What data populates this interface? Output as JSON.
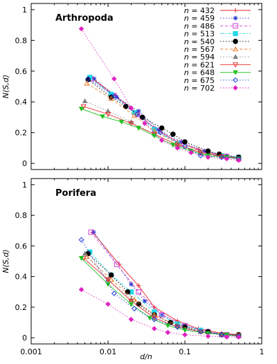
{
  "figure": {
    "xlabel": "d/n",
    "x_ticks": [
      "0.001",
      "0.01",
      "0.1",
      "1"
    ],
    "y_ticks": [
      "0",
      "0.2",
      "0.4",
      "0.6",
      "0.8",
      "1"
    ]
  },
  "chart_data": [
    {
      "type": "line",
      "title": "Arthropoda",
      "xlabel": "",
      "ylabel": "N(S,d)",
      "xscale": "log",
      "xlim": [
        0.001,
        1
      ],
      "ylim": [
        -0.04,
        1.04
      ],
      "grid": false,
      "legend": "top-right",
      "series": [
        {
          "name": "n = 432",
          "color": "#e8202a",
          "marker": "plus",
          "dash": "solid",
          "points": [
            [
              0.0063,
              0.55
            ],
            [
              0.0125,
              0.44
            ],
            [
              0.02,
              0.36
            ],
            [
              0.04,
              0.23
            ],
            [
              0.08,
              0.14
            ],
            [
              0.15,
              0.09
            ],
            [
              0.3,
              0.05
            ],
            [
              0.5,
              0.035
            ]
          ]
        },
        {
          "name": "n = 459",
          "color": "#2030c8",
          "marker": "star",
          "dash": "dot",
          "points": [
            [
              0.0066,
              0.55
            ],
            [
              0.013,
              0.43
            ],
            [
              0.025,
              0.34
            ],
            [
              0.045,
              0.22
            ],
            [
              0.09,
              0.14
            ],
            [
              0.18,
              0.08
            ],
            [
              0.35,
              0.05
            ],
            [
              0.5,
              0.04
            ]
          ]
        },
        {
          "name": "n = 486",
          "color": "#d040d0",
          "marker": "square",
          "dash": "dash",
          "points": [
            [
              0.006,
              0.55
            ],
            [
              0.012,
              0.44
            ],
            [
              0.024,
              0.32
            ],
            [
              0.045,
              0.21
            ],
            [
              0.09,
              0.13
            ],
            [
              0.18,
              0.07
            ],
            [
              0.35,
              0.045
            ],
            [
              0.5,
              0.03
            ]
          ]
        },
        {
          "name": "n = 513",
          "color": "#20d8e8",
          "marker": "filled-square",
          "dash": "dashdot",
          "points": [
            [
              0.0058,
              0.56
            ],
            [
              0.011,
              0.45
            ],
            [
              0.022,
              0.33
            ],
            [
              0.04,
              0.22
            ],
            [
              0.08,
              0.13
            ],
            [
              0.16,
              0.07
            ],
            [
              0.3,
              0.05
            ],
            [
              0.5,
              0.04
            ]
          ]
        },
        {
          "name": "n = 540",
          "color": "#000000",
          "marker": "filled-circle",
          "dash": "dot",
          "points": [
            [
              0.0055,
              0.545
            ],
            [
              0.011,
              0.43
            ],
            [
              0.017,
              0.37
            ],
            [
              0.028,
              0.3
            ],
            [
              0.05,
              0.23
            ],
            [
              0.07,
              0.19
            ],
            [
              0.1,
              0.14
            ],
            [
              0.2,
              0.08
            ],
            [
              0.28,
              0.06
            ],
            [
              0.5,
              0.04
            ]
          ]
        },
        {
          "name": "n = 567",
          "color": "#f08030",
          "marker": "triangle",
          "dash": "dash",
          "points": [
            [
              0.0053,
              0.52
            ],
            [
              0.011,
              0.42
            ],
            [
              0.022,
              0.31
            ],
            [
              0.04,
              0.21
            ],
            [
              0.08,
              0.13
            ],
            [
              0.16,
              0.07
            ],
            [
              0.3,
              0.045
            ],
            [
              0.5,
              0.03
            ]
          ]
        },
        {
          "name": "n = 594",
          "color": "#808080",
          "marker": "filled-triangle",
          "dash": "dot",
          "points": [
            [
              0.005,
              0.405
            ],
            [
              0.01,
              0.34
            ],
            [
              0.02,
              0.27
            ],
            [
              0.04,
              0.19
            ],
            [
              0.08,
              0.12
            ],
            [
              0.16,
              0.07
            ],
            [
              0.3,
              0.045
            ],
            [
              0.5,
              0.03
            ]
          ]
        },
        {
          "name": "n = 621",
          "color": "#e83030",
          "marker": "triangle-down",
          "dash": "solid",
          "points": [
            [
              0.0048,
              0.37
            ],
            [
              0.01,
              0.32
            ],
            [
              0.02,
              0.26
            ],
            [
              0.04,
              0.19
            ],
            [
              0.08,
              0.12
            ],
            [
              0.16,
              0.07
            ],
            [
              0.3,
              0.045
            ],
            [
              0.5,
              0.03
            ]
          ]
        },
        {
          "name": "n = 648",
          "color": "#20c020",
          "marker": "filled-triangle-down",
          "dash": "solid",
          "points": [
            [
              0.0045,
              0.355
            ],
            [
              0.0085,
              0.305
            ],
            [
              0.015,
              0.27
            ],
            [
              0.025,
              0.23
            ],
            [
              0.04,
              0.18
            ],
            [
              0.07,
              0.12
            ],
            [
              0.12,
              0.08
            ],
            [
              0.2,
              0.05
            ],
            [
              0.35,
              0.04
            ],
            [
              0.5,
              0.03
            ]
          ]
        },
        {
          "name": "n = 675",
          "color": "#2040e0",
          "marker": "diamond",
          "dash": "dot",
          "points": [
            [
              0.0055,
              0.55
            ],
            [
              0.012,
              0.44
            ],
            [
              0.024,
              0.32
            ],
            [
              0.048,
              0.2
            ],
            [
              0.1,
              0.11
            ],
            [
              0.16,
              0.05
            ],
            [
              0.3,
              0.04
            ],
            [
              0.5,
              0.03
            ]
          ]
        },
        {
          "name": "n = 702",
          "color": "#e020c0",
          "marker": "filled-diamond",
          "dash": "dot",
          "points": [
            [
              0.0045,
              0.875
            ],
            [
              0.012,
              0.55
            ],
            [
              0.02,
              0.36
            ],
            [
              0.03,
              0.26
            ],
            [
              0.05,
              0.15
            ],
            [
              0.08,
              0.1
            ],
            [
              0.12,
              0.07
            ],
            [
              0.2,
              0.04
            ],
            [
              0.35,
              0.03
            ],
            [
              0.5,
              0.02
            ]
          ]
        }
      ]
    },
    {
      "type": "line",
      "title": "Porifera",
      "xlabel": "d/n",
      "ylabel": "N(S,d)",
      "xscale": "log",
      "xlim": [
        0.001,
        1
      ],
      "ylim": [
        -0.04,
        1.04
      ],
      "grid": false,
      "series": [
        {
          "name": "n = 432",
          "color": "#e8202a",
          "marker": "plus",
          "dash": "solid",
          "points": [
            [
              0.0063,
              0.69
            ],
            [
              0.014,
              0.48
            ],
            [
              0.025,
              0.34
            ],
            [
              0.04,
              0.2
            ],
            [
              0.08,
              0.11
            ],
            [
              0.15,
              0.06
            ],
            [
              0.3,
              0.03
            ],
            [
              0.5,
              0.02
            ]
          ]
        },
        {
          "name": "n = 459",
          "color": "#2030c8",
          "marker": "star",
          "dash": "dot",
          "points": [
            [
              0.0065,
              0.69
            ],
            [
              0.02,
              0.35
            ],
            [
              0.03,
              0.24
            ],
            [
              0.05,
              0.15
            ],
            [
              0.1,
              0.08
            ],
            [
              0.2,
              0.04
            ],
            [
              0.35,
              0.02
            ],
            [
              0.5,
              0.02
            ]
          ]
        },
        {
          "name": "n = 486",
          "color": "#d040d0",
          "marker": "square",
          "dash": "dash",
          "points": [
            [
              0.006,
              0.69
            ],
            [
              0.013,
              0.48
            ],
            [
              0.025,
              0.3
            ],
            [
              0.05,
              0.15
            ],
            [
              0.1,
              0.08
            ],
            [
              0.2,
              0.04
            ],
            [
              0.35,
              0.02
            ],
            [
              0.5,
              0.015
            ]
          ]
        },
        {
          "name": "n = 513",
          "color": "#20d8e8",
          "marker": "filled-square",
          "dash": "dashdot",
          "points": [
            [
              0.0058,
              0.56
            ],
            [
              0.011,
              0.41
            ],
            [
              0.02,
              0.3
            ],
            [
              0.04,
              0.17
            ],
            [
              0.08,
              0.09
            ],
            [
              0.16,
              0.05
            ],
            [
              0.3,
              0.02
            ],
            [
              0.5,
              0.015
            ]
          ]
        },
        {
          "name": "n = 540",
          "color": "#000000",
          "marker": "filled-circle",
          "dash": "dot",
          "points": [
            [
              0.0055,
              0.55
            ],
            [
              0.011,
              0.41
            ],
            [
              0.018,
              0.3
            ],
            [
              0.025,
              0.22
            ],
            [
              0.04,
              0.15
            ],
            [
              0.065,
              0.1
            ],
            [
              0.1,
              0.07
            ],
            [
              0.2,
              0.04
            ],
            [
              0.3,
              0.02
            ],
            [
              0.5,
              0.02
            ]
          ]
        },
        {
          "name": "n = 567",
          "color": "#f08030",
          "marker": "triangle",
          "dash": "dash",
          "points": [
            [
              0.0053,
              0.53
            ],
            [
              0.011,
              0.38
            ],
            [
              0.022,
              0.25
            ],
            [
              0.04,
              0.15
            ],
            [
              0.08,
              0.08
            ],
            [
              0.16,
              0.04
            ],
            [
              0.3,
              0.02
            ],
            [
              0.5,
              0.015
            ]
          ]
        },
        {
          "name": "n = 594",
          "color": "#808080",
          "marker": "filled-triangle",
          "dash": "dot",
          "points": [
            [
              0.005,
              0.55
            ],
            [
              0.01,
              0.38
            ],
            [
              0.02,
              0.25
            ],
            [
              0.04,
              0.14
            ],
            [
              0.08,
              0.08
            ],
            [
              0.16,
              0.04
            ],
            [
              0.3,
              0.02
            ],
            [
              0.5,
              0.01
            ]
          ]
        },
        {
          "name": "n = 621",
          "color": "#e83030",
          "marker": "triangle-down",
          "dash": "solid",
          "points": [
            [
              0.0048,
              0.52
            ],
            [
              0.01,
              0.38
            ],
            [
              0.02,
              0.24
            ],
            [
              0.04,
              0.13
            ],
            [
              0.08,
              0.07
            ],
            [
              0.16,
              0.04
            ],
            [
              0.3,
              0.02
            ],
            [
              0.5,
              0.015
            ]
          ]
        },
        {
          "name": "n = 648",
          "color": "#20c020",
          "marker": "filled-triangle-down",
          "dash": "solid",
          "points": [
            [
              0.0045,
              0.52
            ],
            [
              0.01,
              0.35
            ],
            [
              0.02,
              0.22
            ],
            [
              0.035,
              0.13
            ],
            [
              0.06,
              0.08
            ],
            [
              0.1,
              0.05
            ],
            [
              0.2,
              0.03
            ],
            [
              0.35,
              0.02
            ],
            [
              0.5,
              0.01
            ]
          ]
        },
        {
          "name": "n = 675",
          "color": "#2040e0",
          "marker": "diamond",
          "dash": "dot",
          "points": [
            [
              0.0045,
              0.64
            ],
            [
              0.012,
              0.29
            ],
            [
              0.022,
              0.19
            ],
            [
              0.04,
              0.12
            ],
            [
              0.08,
              0.07
            ],
            [
              0.16,
              0.04
            ],
            [
              0.3,
              0.02
            ],
            [
              0.5,
              0.01
            ]
          ]
        },
        {
          "name": "n = 702",
          "color": "#e020c0",
          "marker": "filled-diamond",
          "dash": "dot",
          "points": [
            [
              0.0045,
              0.315
            ],
            [
              0.01,
              0.22
            ],
            [
              0.02,
              0.12
            ],
            [
              0.04,
              0.06
            ],
            [
              0.06,
              0.035
            ],
            [
              0.1,
              0.02
            ],
            [
              0.2,
              0.01
            ],
            [
              0.35,
              0.005
            ],
            [
              0.5,
              0.005
            ]
          ]
        }
      ]
    }
  ]
}
